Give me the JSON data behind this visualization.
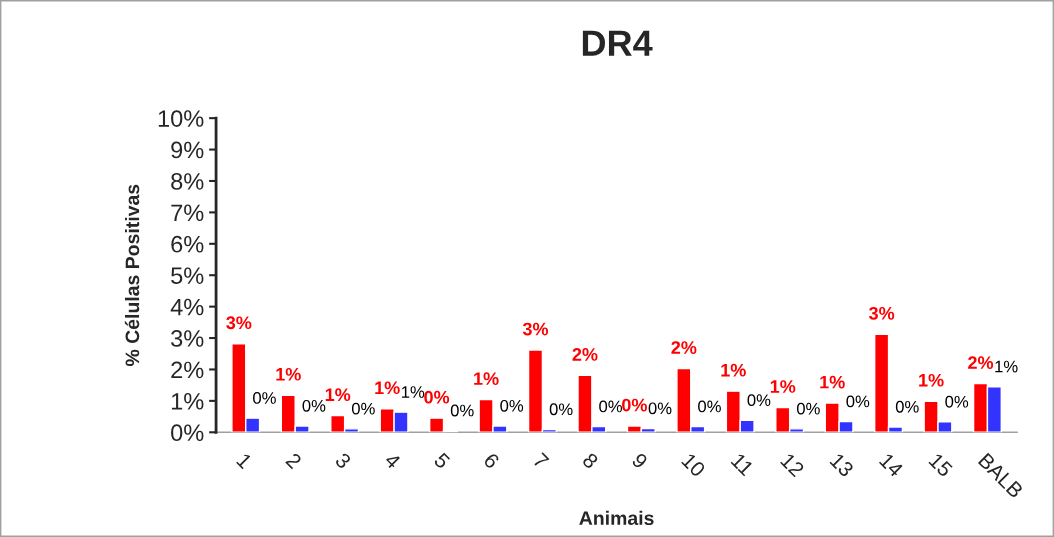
{
  "chart_data": {
    "type": "bar",
    "title": "DR4",
    "xlabel": "Animais",
    "ylabel": "% Células Positivas",
    "categories": [
      "1",
      "2",
      "3",
      "4",
      "5",
      "6",
      "7",
      "8",
      "9",
      "10",
      "11",
      "12",
      "13",
      "14",
      "15",
      "BALB"
    ],
    "series": [
      {
        "color": "#ff0000",
        "values": [
          2.82,
          1.18,
          0.53,
          0.75,
          0.45,
          1.04,
          2.62,
          1.81,
          0.2,
          2.03,
          1.31,
          0.79,
          0.93,
          3.12,
          0.99,
          1.55
        ],
        "value_labels": [
          "3%",
          "1%",
          "1%",
          "1%",
          "0%",
          "1%",
          "3%",
          "2%",
          "0%",
          "2%",
          "1%",
          "1%",
          "1%",
          "3%",
          "1%",
          "2%"
        ]
      },
      {
        "color": "#3333ff",
        "values": [
          0.45,
          0.2,
          0.11,
          0.64,
          0.05,
          0.2,
          0.09,
          0.18,
          0.12,
          0.18,
          0.38,
          0.11,
          0.34,
          0.17,
          0.33,
          1.45
        ],
        "value_labels": [
          "0%",
          "0%",
          "0%",
          "1%",
          "0%",
          "0%",
          "0%",
          "0%",
          "0%",
          "0%",
          "0%",
          "0%",
          "0%",
          "0%",
          "0%",
          "1%"
        ]
      }
    ],
    "ylim": [
      0,
      10
    ],
    "yticks": [
      {
        "value": 0,
        "label": "0%"
      },
      {
        "value": 1,
        "label": "1%"
      },
      {
        "value": 2,
        "label": "2%"
      },
      {
        "value": 3,
        "label": "3%"
      },
      {
        "value": 4,
        "label": "4%"
      },
      {
        "value": 5,
        "label": "5%"
      },
      {
        "value": 6,
        "label": "6%"
      },
      {
        "value": 7,
        "label": "7%"
      },
      {
        "value": 8,
        "label": "8%"
      },
      {
        "value": 9,
        "label": "9%"
      },
      {
        "value": 10,
        "label": "10%"
      }
    ],
    "grid": false,
    "legend": false
  }
}
